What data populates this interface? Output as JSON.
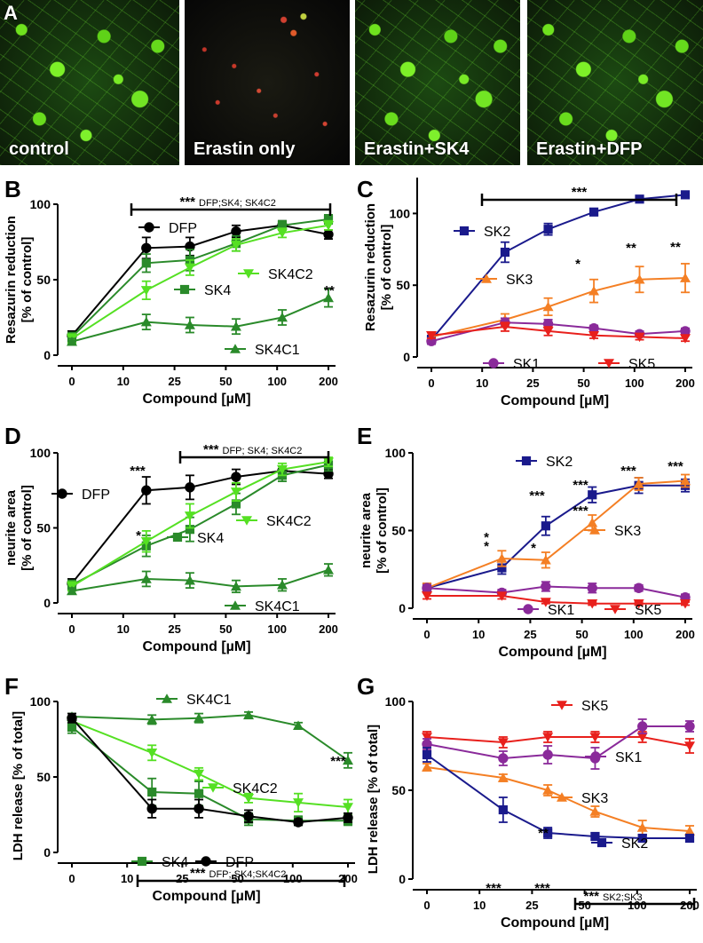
{
  "figure": {
    "panel_a": {
      "letter": "A",
      "images": [
        {
          "caption": "control"
        },
        {
          "caption": "Erastin only"
        },
        {
          "caption": "Erastin+SK4"
        },
        {
          "caption": "Erastin+DFP"
        }
      ]
    }
  },
  "colors": {
    "black": "#000000",
    "dark_green": "#2a8a2a",
    "light_green": "#55e023",
    "navy": "#1a1a8c",
    "orange": "#f47f24",
    "purple": "#8a2a9a",
    "red": "#e8201c"
  },
  "chart_data": [
    {
      "panel": "B",
      "type": "line",
      "ylabel": "Resazurin reduction\n[% of control]",
      "xlabel": "Compound [µM]",
      "x_ticks": [
        "0",
        "10",
        "25",
        "50",
        "100",
        "200"
      ],
      "y_ticks": [
        0,
        50,
        100
      ],
      "ylim": [
        0,
        100
      ],
      "series": [
        {
          "name": "DFP",
          "marker": "circle",
          "color": "#000000",
          "x_pos": [
            0,
            1.45,
            2.3,
            3.2,
            4.1,
            5
          ],
          "values": [
            13,
            71,
            72,
            82,
            86,
            80
          ],
          "err": [
            3,
            7,
            6,
            4,
            3,
            3
          ]
        },
        {
          "name": "SK4",
          "marker": "square",
          "color": "#2a8a2a",
          "x_pos": [
            0,
            1.45,
            2.3,
            3.2,
            4.1,
            5
          ],
          "values": [
            12,
            61,
            63,
            74,
            86,
            90
          ],
          "err": [
            3,
            6,
            7,
            5,
            3,
            3
          ]
        },
        {
          "name": "SK4C2",
          "marker": "triangle-down",
          "color": "#55e023",
          "x_pos": [
            0,
            1.45,
            2.3,
            3.2,
            4.1,
            5
          ],
          "values": [
            11,
            43,
            58,
            73,
            81,
            86
          ],
          "err": [
            3,
            6,
            5,
            4,
            3,
            3
          ]
        },
        {
          "name": "SK4C1",
          "marker": "triangle-up",
          "color": "#2a8a2a",
          "x_pos": [
            0,
            1.45,
            2.3,
            3.2,
            4.1,
            5
          ],
          "values": [
            9,
            22,
            20,
            19,
            25,
            38
          ],
          "err": [
            2,
            5,
            5,
            5,
            5,
            6
          ]
        }
      ],
      "annotations": [
        {
          "text": "***",
          "sub": "DFP;SK4; SK4C2",
          "kind": "bracket"
        },
        {
          "text": "**",
          "kind": "star"
        }
      ]
    },
    {
      "panel": "C",
      "type": "line",
      "ylabel": "Resazurin reduction\n[% of control]",
      "xlabel": "Compound [µM]",
      "x_ticks": [
        "0",
        "10",
        "25",
        "50",
        "100",
        "200"
      ],
      "y_ticks": [
        0,
        50,
        100
      ],
      "ylim": [
        0,
        125
      ],
      "series": [
        {
          "name": "SK2",
          "marker": "square",
          "color": "#1a1a8c",
          "x_pos": [
            0,
            1.45,
            2.3,
            3.2,
            4.1,
            5
          ],
          "values": [
            12,
            73,
            89,
            101,
            110,
            113
          ],
          "err": [
            3,
            7,
            4,
            2,
            2,
            2
          ]
        },
        {
          "name": "SK3",
          "marker": "triangle-up",
          "color": "#f47f24",
          "x_pos": [
            0,
            1.45,
            2.3,
            3.2,
            4.1,
            5
          ],
          "values": [
            14,
            26,
            35,
            46,
            54,
            55
          ],
          "err": [
            3,
            4,
            6,
            8,
            9,
            10
          ]
        },
        {
          "name": "SK1",
          "marker": "circle",
          "color": "#8a2a9a",
          "x_pos": [
            0,
            1.45,
            2.3,
            3.2,
            4.1,
            5
          ],
          "values": [
            11,
            24,
            23,
            20,
            16,
            18
          ],
          "err": [
            2,
            3,
            3,
            2,
            2,
            2
          ]
        },
        {
          "name": "SK5",
          "marker": "triangle-down",
          "color": "#e8201c",
          "x_pos": [
            0,
            1.45,
            2.3,
            3.2,
            4.1,
            5
          ],
          "values": [
            15,
            21,
            18,
            15,
            14,
            13
          ],
          "err": [
            2,
            3,
            3,
            2,
            2,
            2
          ]
        }
      ],
      "annotations": [
        {
          "text": "***",
          "kind": "bracket"
        },
        {
          "text": "*",
          "kind": "star"
        },
        {
          "text": "**",
          "kind": "star"
        },
        {
          "text": "**",
          "kind": "star"
        }
      ]
    },
    {
      "panel": "D",
      "type": "line",
      "ylabel": "neurite area\n[% of control]",
      "xlabel": "Compound [µM]",
      "x_ticks": [
        "0",
        "10",
        "25",
        "50",
        "100",
        "200"
      ],
      "y_ticks": [
        0,
        50,
        100
      ],
      "ylim": [
        0,
        100
      ],
      "series": [
        {
          "name": "DFP",
          "marker": "circle",
          "color": "#000000",
          "x_pos": [
            0,
            1.45,
            2.3,
            3.2,
            4.1,
            5
          ],
          "values": [
            13,
            75,
            77,
            84,
            88,
            86
          ],
          "err": [
            3,
            9,
            8,
            5,
            3,
            3
          ]
        },
        {
          "name": "SK4",
          "marker": "square",
          "color": "#2a8a2a",
          "x_pos": [
            0,
            1.45,
            2.3,
            3.2,
            4.1,
            5
          ],
          "values": [
            12,
            38,
            49,
            66,
            85,
            92
          ],
          "err": [
            3,
            7,
            8,
            7,
            4,
            4
          ]
        },
        {
          "name": "SK4C2",
          "marker": "triangle-down",
          "color": "#55e023",
          "x_pos": [
            0,
            1.45,
            2.3,
            3.2,
            4.1,
            5
          ],
          "values": [
            11,
            41,
            58,
            74,
            89,
            94
          ],
          "err": [
            3,
            7,
            8,
            6,
            4,
            3
          ]
        },
        {
          "name": "SK4C1",
          "marker": "triangle-up",
          "color": "#2a8a2a",
          "x_pos": [
            0,
            1.45,
            2.3,
            3.2,
            4.1,
            5
          ],
          "values": [
            8,
            16,
            15,
            11,
            12,
            22
          ],
          "err": [
            2,
            5,
            5,
            4,
            4,
            4
          ]
        }
      ],
      "annotations": [
        {
          "text": "***",
          "sub": "DFP; SK4; SK4C2",
          "kind": "bracket"
        },
        {
          "text": "***",
          "kind": "star"
        },
        {
          "text": "*",
          "kind": "star"
        }
      ]
    },
    {
      "panel": "E",
      "type": "line",
      "ylabel": "neurite area\n[% of control]",
      "xlabel": "Compound [µM]",
      "x_ticks": [
        "0",
        "10",
        "25",
        "50",
        "100",
        "200"
      ],
      "y_ticks": [
        0,
        50,
        100
      ],
      "ylim": [
        0,
        100
      ],
      "series": [
        {
          "name": "SK2",
          "marker": "square",
          "color": "#1a1a8c",
          "x_pos": [
            0,
            1.45,
            2.3,
            3.2,
            4.1,
            5
          ],
          "values": [
            13,
            26,
            53,
            73,
            79,
            79
          ],
          "err": [
            3,
            4,
            6,
            5,
            5,
            4
          ]
        },
        {
          "name": "SK3",
          "marker": "triangle-up",
          "color": "#f47f24",
          "x_pos": [
            0,
            1.45,
            2.3,
            3.2,
            4.1,
            5
          ],
          "values": [
            13,
            32,
            31,
            55,
            80,
            82
          ],
          "err": [
            3,
            5,
            5,
            5,
            4,
            4
          ]
        },
        {
          "name": "SK1",
          "marker": "circle",
          "color": "#8a2a9a",
          "x_pos": [
            0,
            1.45,
            2.3,
            3.2,
            4.1,
            5
          ],
          "values": [
            13,
            10,
            14,
            13,
            13,
            7
          ],
          "err": [
            2,
            2,
            3,
            3,
            2,
            2
          ]
        },
        {
          "name": "SK5",
          "marker": "triangle-down",
          "color": "#e8201c",
          "x_pos": [
            0,
            1.45,
            2.3,
            3.2,
            4.1,
            5
          ],
          "values": [
            8,
            8,
            4,
            3,
            3,
            3
          ],
          "err": [
            2,
            2,
            1,
            1,
            1,
            1
          ]
        }
      ],
      "annotations": [
        {
          "text": "*",
          "kind": "star"
        },
        {
          "text": "*",
          "kind": "star"
        },
        {
          "text": "***",
          "kind": "star"
        },
        {
          "text": "*",
          "kind": "star"
        },
        {
          "text": "***",
          "kind": "star"
        },
        {
          "text": "***",
          "kind": "star"
        },
        {
          "text": "***",
          "kind": "star"
        },
        {
          "text": "***",
          "kind": "star"
        }
      ]
    },
    {
      "panel": "F",
      "type": "line",
      "ylabel": "LDH release [% of total]",
      "xlabel": "Compound [µM]",
      "x_ticks": [
        "0",
        "10",
        "25",
        "50",
        "100",
        "200"
      ],
      "y_ticks": [
        0,
        50,
        100
      ],
      "ylim": [
        0,
        100
      ],
      "series": [
        {
          "name": "SK4C1",
          "marker": "triangle-up",
          "color": "#2a8a2a",
          "x_pos": [
            0,
            1.45,
            2.3,
            3.2,
            4.1,
            5
          ],
          "values": [
            90,
            88,
            89,
            91,
            84,
            61
          ],
          "err": [
            2,
            3,
            3,
            2,
            2,
            5
          ]
        },
        {
          "name": "SK4C2",
          "marker": "triangle-down",
          "color": "#55e023",
          "x_pos": [
            0,
            1.45,
            2.3,
            3.2,
            4.1,
            5
          ],
          "values": [
            87,
            66,
            52,
            36,
            33,
            30
          ],
          "err": [
            3,
            5,
            4,
            3,
            6,
            5
          ]
        },
        {
          "name": "SK4",
          "marker": "square",
          "color": "#2a8a2a",
          "x_pos": [
            0,
            1.45,
            2.3,
            3.2,
            4.1,
            5
          ],
          "values": [
            83,
            40,
            39,
            22,
            21,
            21
          ],
          "err": [
            4,
            9,
            8,
            4,
            3,
            3
          ]
        },
        {
          "name": "DFP",
          "marker": "circle",
          "color": "#000000",
          "x_pos": [
            0,
            1.45,
            2.3,
            3.2,
            4.1,
            5
          ],
          "values": [
            89,
            29,
            29,
            24,
            20,
            23
          ],
          "err": [
            3,
            6,
            6,
            4,
            2,
            3
          ]
        }
      ],
      "annotations": [
        {
          "text": "***",
          "sub": "DFP; SK4;SK4C2",
          "kind": "bracket"
        },
        {
          "text": "***",
          "kind": "star"
        }
      ]
    },
    {
      "panel": "G",
      "type": "line",
      "ylabel": "LDH release [% of total]",
      "xlabel": "Compound [µM]",
      "x_ticks": [
        "0",
        "10",
        "25",
        "50",
        "100",
        "200"
      ],
      "y_ticks": [
        0,
        50,
        100
      ],
      "ylim": [
        0,
        100
      ],
      "series": [
        {
          "name": "SK5",
          "marker": "triangle-down",
          "color": "#e8201c",
          "x_pos": [
            0,
            1.45,
            2.3,
            3.2,
            4.1,
            5
          ],
          "values": [
            80,
            77,
            80,
            80,
            80,
            75
          ],
          "err": [
            3,
            3,
            3,
            3,
            3,
            4
          ]
        },
        {
          "name": "SK1",
          "marker": "circle",
          "color": "#8a2a9a",
          "x_pos": [
            0,
            1.45,
            2.3,
            3.2,
            4.1,
            5
          ],
          "values": [
            76,
            68,
            70,
            68,
            86,
            86
          ],
          "err": [
            3,
            4,
            5,
            6,
            4,
            3
          ]
        },
        {
          "name": "SK3",
          "marker": "triangle-up",
          "color": "#f47f24",
          "x_pos": [
            0,
            1.45,
            2.3,
            3.2,
            4.1,
            5
          ],
          "values": [
            63,
            57,
            50,
            38,
            29,
            27
          ],
          "err": [
            2,
            2,
            3,
            3,
            4,
            3
          ]
        },
        {
          "name": "SK2",
          "marker": "square",
          "color": "#1a1a8c",
          "x_pos": [
            0,
            1.45,
            2.3,
            3.2,
            4.1,
            5
          ],
          "values": [
            70,
            39,
            26,
            24,
            23,
            23
          ],
          "err": [
            4,
            7,
            3,
            2,
            2,
            2
          ]
        }
      ],
      "annotations": [
        {
          "text": "***",
          "sub": "SK2;SK3",
          "kind": "bracket"
        },
        {
          "text": "***",
          "kind": "star"
        },
        {
          "text": "**",
          "kind": "star"
        },
        {
          "text": "***",
          "kind": "star"
        }
      ]
    }
  ]
}
